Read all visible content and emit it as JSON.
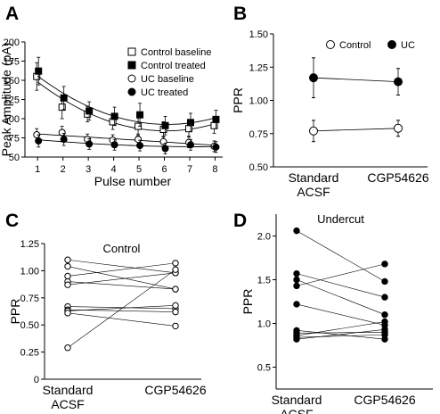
{
  "chart_data": [
    {
      "panel": "A",
      "type": "line",
      "xlabel": "Pulse number",
      "ylabel": "Peak Amplitude (pA)",
      "x": [
        1,
        2,
        3,
        4,
        5,
        6,
        7,
        8
      ],
      "xlim": [
        0.5,
        8.3
      ],
      "ylim": [
        50,
        200
      ],
      "yticks": [
        50,
        75,
        100,
        125,
        150,
        175,
        200
      ],
      "series": [
        {
          "name": "Control baseline",
          "marker": "open-square",
          "values": [
            155,
            115,
            106,
            96,
            90,
            86,
            87,
            91
          ],
          "err": [
            18,
            15,
            10,
            10,
            12,
            10,
            10,
            10
          ]
        },
        {
          "name": "Control treated",
          "marker": "filled-square",
          "values": [
            162,
            127,
            110,
            103,
            105,
            91,
            95,
            99
          ],
          "err": [
            18,
            15,
            12,
            12,
            15,
            12,
            12,
            12
          ]
        },
        {
          "name": "UC baseline",
          "marker": "open-circle",
          "values": [
            79,
            82,
            73,
            72,
            73,
            70,
            69,
            64
          ],
          "err": [
            8,
            8,
            7,
            7,
            7,
            7,
            7,
            7
          ]
        },
        {
          "name": "UC treated",
          "marker": "filled-circle",
          "values": [
            71,
            73,
            67,
            66,
            65,
            61,
            66,
            63
          ],
          "err": [
            8,
            8,
            7,
            7,
            7,
            7,
            7,
            7
          ]
        }
      ],
      "legend_position": "top-right"
    },
    {
      "panel": "B",
      "type": "line",
      "ylabel": "PPR",
      "categories": [
        "Standard\nACSF",
        "CGP54626"
      ],
      "ylim": [
        0.5,
        1.5
      ],
      "yticks": [
        0.5,
        0.75,
        1.0,
        1.25,
        1.5
      ],
      "ytick_labels": [
        "0.50",
        "0.75",
        "1.00",
        "1.25",
        "1.50"
      ],
      "series": [
        {
          "name": "Control",
          "marker": "open-circle",
          "values": [
            0.77,
            0.79
          ],
          "err": [
            0.08,
            0.06
          ]
        },
        {
          "name": "UC",
          "marker": "filled-circle",
          "values": [
            1.17,
            1.14
          ],
          "err": [
            0.15,
            0.1
          ]
        }
      ],
      "legend_position": "top"
    },
    {
      "panel": "C",
      "type": "line",
      "title": "Control",
      "ylabel": "PPR",
      "categories": [
        "Standard\nACSF",
        "CGP54626"
      ],
      "ylim": [
        0,
        1.25
      ],
      "yticks": [
        0,
        0.25,
        0.5,
        0.75,
        1.0,
        1.25
      ],
      "ytick_labels": [
        "0",
        "0.25",
        "0.50",
        "0.75",
        "1.00",
        "1.25"
      ],
      "pairs": [
        [
          1.1,
          0.98
        ],
        [
          1.04,
          0.83
        ],
        [
          0.95,
          1.07
        ],
        [
          0.9,
          0.83
        ],
        [
          0.87,
          0.98
        ],
        [
          0.67,
          0.65
        ],
        [
          0.64,
          0.62
        ],
        [
          0.63,
          0.68
        ],
        [
          0.61,
          0.49
        ],
        [
          0.29,
          1.01
        ]
      ],
      "marker": "open-circle"
    },
    {
      "panel": "D",
      "type": "line",
      "title": "Undercut",
      "ylabel": "PPR",
      "categories": [
        "Standard\nACSF",
        "CGP54626"
      ],
      "ylim": [
        0.25,
        2.25
      ],
      "yticks": [
        0.5,
        1.0,
        1.5,
        2.0
      ],
      "ytick_labels": [
        "0.5",
        "1.0",
        "1.5",
        "2.0"
      ],
      "pairs": [
        [
          2.06,
          1.48
        ],
        [
          1.57,
          1.3
        ],
        [
          1.5,
          1.1
        ],
        [
          1.43,
          1.68
        ],
        [
          1.22,
          0.98
        ],
        [
          0.92,
          0.82
        ],
        [
          0.89,
          0.9
        ],
        [
          0.86,
          1.02
        ],
        [
          0.84,
          0.87
        ],
        [
          0.82,
          0.93
        ]
      ],
      "marker": "filled-circle"
    }
  ],
  "panel_labels": [
    "A",
    "B",
    "C",
    "D"
  ]
}
